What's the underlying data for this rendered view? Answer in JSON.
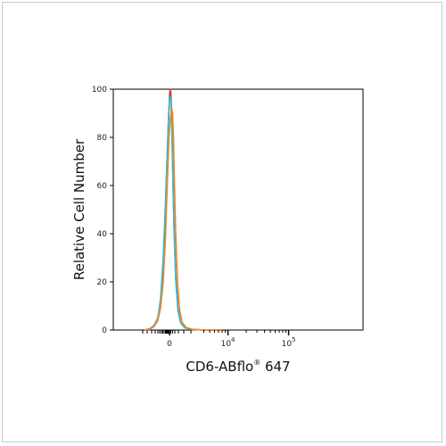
{
  "chart_data": {
    "type": "line",
    "title": "",
    "xlabel": "CD6-ABflo",
    "xlabel_sup": "®",
    "xlabel_suffix": " 647",
    "ylabel": "Relative Cell Number",
    "ylim": [
      0,
      100
    ],
    "y_ticks": [
      "0",
      "20",
      "40",
      "60",
      "80",
      "100"
    ],
    "x_scale": "biexponential",
    "x_ticks": [
      {
        "base": "0",
        "sup": ""
      },
      {
        "base": "10",
        "sup": "4"
      },
      {
        "base": "10",
        "sup": "5"
      }
    ],
    "series": [
      {
        "color": "#e03030",
        "x": [
          -2.8,
          -2.2,
          -1.7,
          -1.3,
          -1.0,
          -0.7,
          -0.45,
          -0.25,
          -0.1,
          0.0,
          0.08,
          0.16,
          0.25,
          0.35,
          0.5,
          0.7,
          0.95,
          1.25,
          1.7,
          2.4,
          4.0,
          8.0
        ],
        "values": [
          0,
          0.5,
          2,
          5,
          12,
          28,
          50,
          72,
          88,
          97,
          100,
          98,
          88,
          70,
          45,
          22,
          9,
          3,
          1,
          0.3,
          0,
          0
        ]
      },
      {
        "color": "#30b8d8",
        "x": [
          -2.8,
          -2.2,
          -1.7,
          -1.3,
          -1.0,
          -0.7,
          -0.45,
          -0.25,
          -0.1,
          0.0,
          0.08,
          0.16,
          0.25,
          0.35,
          0.5,
          0.7,
          0.95,
          1.25,
          1.7,
          2.4,
          4.0,
          8.0
        ],
        "values": [
          0,
          0.5,
          2,
          5,
          13,
          30,
          53,
          74,
          89,
          96,
          97,
          95,
          86,
          68,
          43,
          21,
          8,
          3,
          1,
          0.3,
          0,
          0
        ]
      },
      {
        "color": "#f08a20",
        "x": [
          -2.8,
          -2.2,
          -1.7,
          -1.3,
          -1.0,
          -0.7,
          -0.45,
          -0.25,
          -0.05,
          0.1,
          0.25,
          0.35,
          0.45,
          0.55,
          0.7,
          0.9,
          1.15,
          1.45,
          1.9,
          2.6,
          4.0,
          8.0
        ],
        "values": [
          0,
          0.3,
          1.5,
          4,
          9,
          20,
          38,
          60,
          80,
          88,
          92,
          90,
          80,
          62,
          40,
          20,
          8,
          3,
          1,
          0.3,
          0,
          0
        ]
      }
    ]
  }
}
